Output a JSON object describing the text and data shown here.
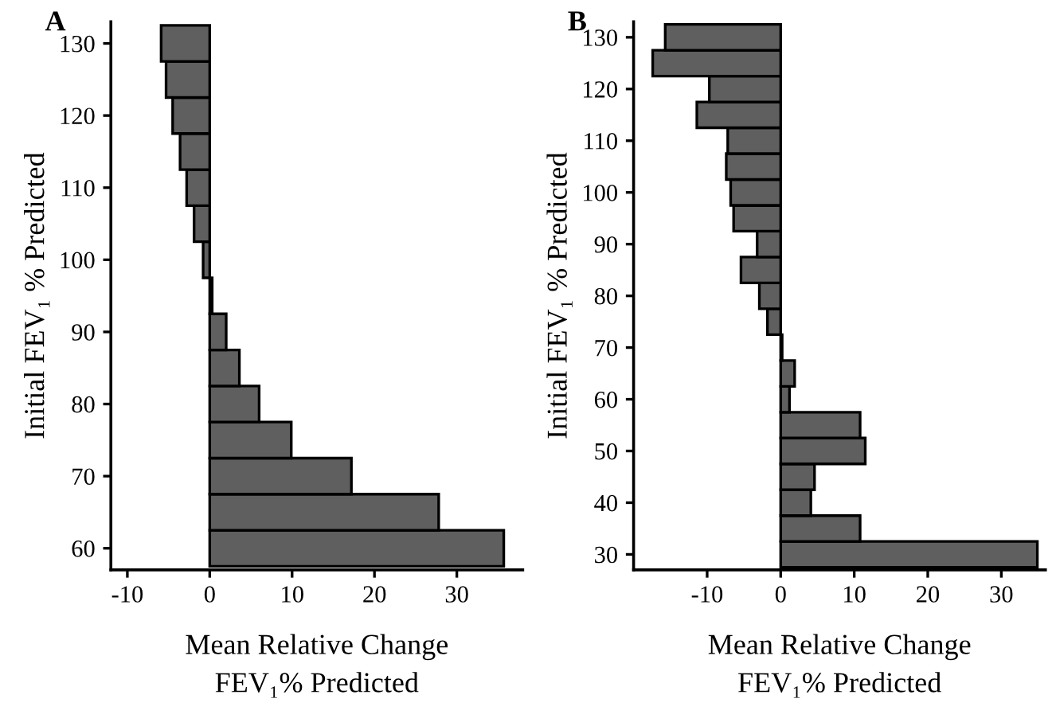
{
  "chart_data": [
    {
      "type": "bar",
      "orientation": "horizontal",
      "title": "A",
      "xlabel": "Mean Relative Change\nFEV₁% Predicted",
      "ylabel": "Initial FEV₁ % Predicted",
      "x": [
        60,
        65,
        70,
        75,
        80,
        85,
        90,
        95,
        100,
        105,
        110,
        115,
        120,
        125,
        130
      ],
      "values": [
        35.7,
        27.8,
        17.2,
        9.9,
        6.0,
        3.6,
        2.0,
        0.3,
        -0.8,
        -1.9,
        -2.8,
        -3.6,
        -4.5,
        -5.3,
        -5.9
      ],
      "color": "#5f5f5f",
      "xlim": [
        -12,
        38
      ],
      "xticks": [
        -10,
        0,
        10,
        20,
        30
      ],
      "ylim": [
        57,
        133
      ],
      "yticks": [
        60,
        70,
        80,
        90,
        100,
        110,
        120,
        130
      ],
      "grid": false,
      "legend": false
    },
    {
      "type": "bar",
      "orientation": "horizontal",
      "title": "B",
      "xlabel": "Mean Relative Change\nFEV₁% Predicted",
      "ylabel": "Initial FEV₁ % Predicted",
      "x": [
        30,
        35,
        40,
        45,
        50,
        55,
        60,
        65,
        70,
        75,
        80,
        85,
        90,
        95,
        100,
        105,
        110,
        115,
        120,
        125,
        130
      ],
      "values": [
        34.9,
        10.8,
        4.1,
        4.6,
        11.5,
        10.8,
        1.2,
        1.9,
        0.2,
        -1.8,
        -2.9,
        -5.4,
        -3.2,
        -6.4,
        -6.8,
        -7.4,
        -7.2,
        -11.4,
        -9.7,
        -17.4,
        -15.7
      ],
      "color": "#5f5f5f",
      "xlim": [
        -20,
        36
      ],
      "xticks": [
        -10,
        0,
        10,
        20,
        30
      ],
      "ylim": [
        27,
        133
      ],
      "yticks": [
        30,
        40,
        50,
        60,
        70,
        80,
        90,
        100,
        110,
        120,
        130
      ],
      "grid": false,
      "legend": false
    }
  ]
}
